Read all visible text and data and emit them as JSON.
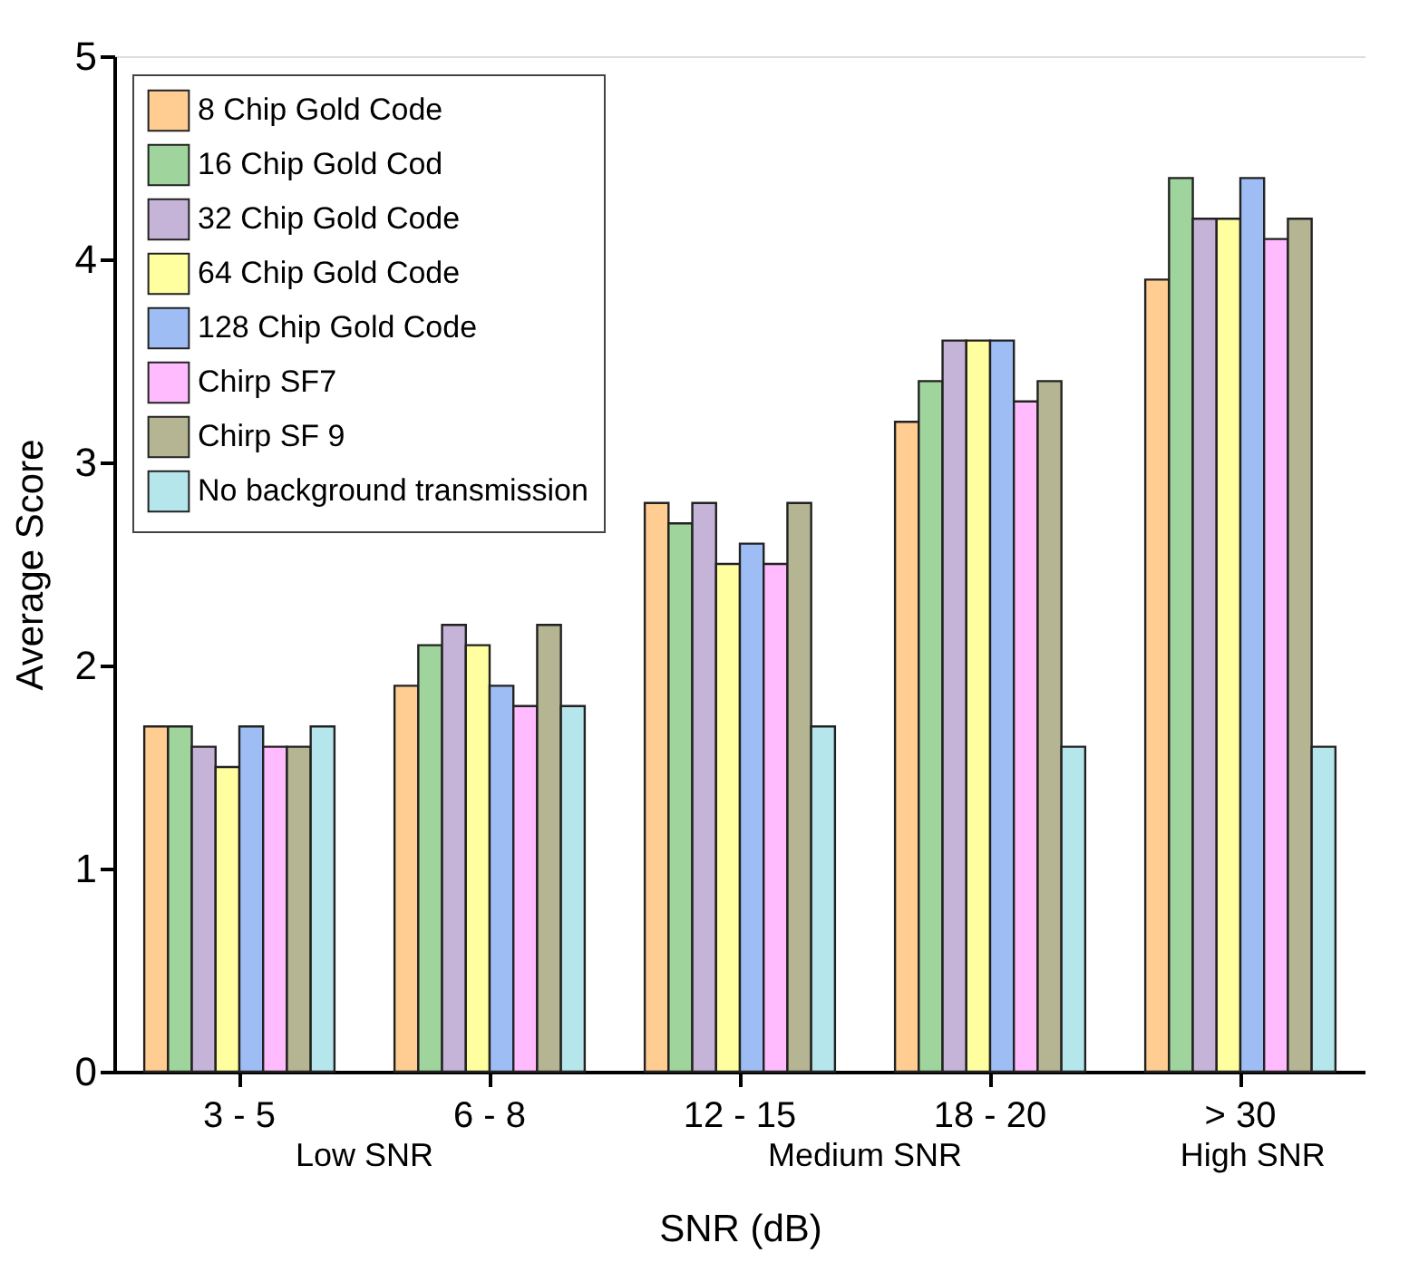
{
  "chart_data": {
    "type": "bar",
    "xlabel": "SNR (dB)",
    "ylabel": "Average Score",
    "categories": [
      "3 - 5",
      "6 - 8",
      "12 - 15",
      "18 - 20",
      "> 30"
    ],
    "series": [
      {
        "name": "8 Chip Gold Code",
        "color": "#ffcc92",
        "values": [
          1.7,
          1.9,
          2.8,
          3.2,
          3.9
        ]
      },
      {
        "name": "16 Chip Gold Cod",
        "color": "#9fd59c",
        "values": [
          1.7,
          2.1,
          2.7,
          3.4,
          4.4
        ]
      },
      {
        "name": "32 Chip Gold Code",
        "color": "#c6b4d8",
        "values": [
          1.6,
          2.2,
          2.8,
          3.6,
          4.2
        ]
      },
      {
        "name": "64 Chip Gold Code",
        "color": "#ffffa0",
        "values": [
          1.5,
          2.1,
          2.5,
          3.6,
          4.2
        ]
      },
      {
        "name": "128 Chip Gold Code",
        "color": "#9fbdf5",
        "values": [
          1.7,
          1.9,
          2.6,
          3.6,
          4.4
        ]
      },
      {
        "name": "Chirp SF7",
        "color": "#ffbbfd",
        "values": [
          1.6,
          1.8,
          2.5,
          3.3,
          4.1
        ]
      },
      {
        "name": "Chirp SF 9",
        "color": "#b5b593",
        "values": [
          1.6,
          2.2,
          2.8,
          3.4,
          4.2
        ]
      },
      {
        "name": "No background transmission",
        "color": "#b5e6ec",
        "values": [
          1.7,
          1.8,
          1.7,
          1.6,
          1.6
        ]
      }
    ],
    "ylim": [
      0,
      5
    ],
    "yticks": [
      0,
      1,
      2,
      3,
      4,
      5
    ],
    "grid": false,
    "legend": "top left",
    "annotations": [
      "Low SNR",
      "Medium SNR",
      "High SNR"
    ]
  }
}
